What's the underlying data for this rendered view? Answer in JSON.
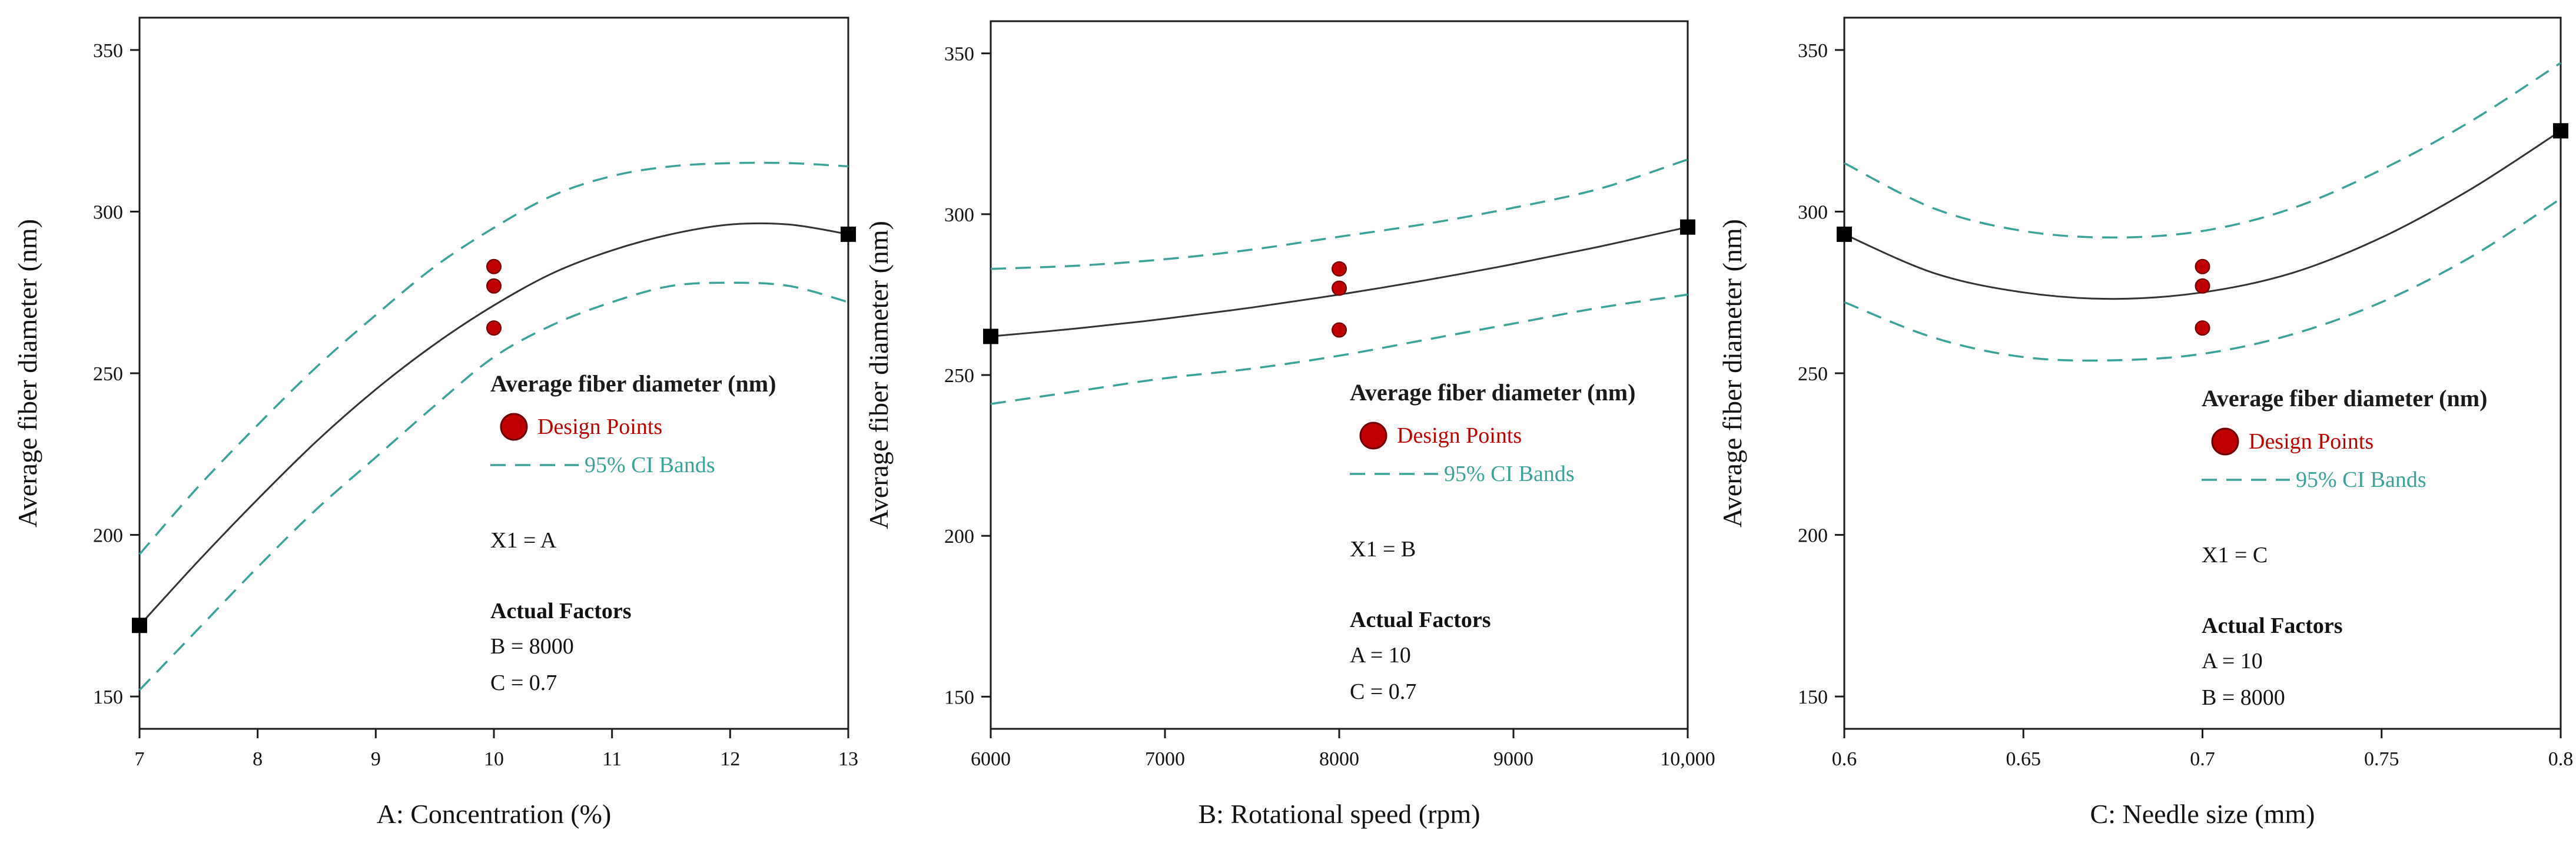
{
  "colors": {
    "fit_line": "#333333",
    "ci_band": "#3aa39a",
    "design_point": "#c00000",
    "design_point_edge": "#6b0000",
    "legend_title": "#1a1a1a",
    "axis": "#1a1a1a"
  },
  "chart_data": [
    {
      "type": "line",
      "xlabel": "A: Concentration (%)",
      "ylabel": "Average fiber diameter (nm)",
      "xlim": [
        7,
        13
      ],
      "ylim": [
        140,
        360
      ],
      "x_ticks": [
        7,
        8,
        9,
        10,
        11,
        12,
        13
      ],
      "x_tick_labels": [
        "7",
        "8",
        "9",
        "10",
        "11",
        "12",
        "13"
      ],
      "y_ticks": [
        150,
        200,
        250,
        300,
        350
      ],
      "y_tick_labels": [
        "150",
        "200",
        "250",
        "300",
        "350"
      ],
      "series": [
        {
          "name": "fit",
          "x": [
            7,
            7.5,
            8,
            8.5,
            9,
            9.5,
            10,
            10.5,
            11,
            11.5,
            12,
            12.5,
            13
          ],
          "values": [
            172,
            192,
            211,
            229,
            245,
            259,
            271,
            281,
            288,
            293,
            296,
            296,
            293
          ]
        },
        {
          "name": "ci_upper",
          "x": [
            7,
            7.5,
            8,
            8.5,
            9,
            9.5,
            10,
            10.5,
            11,
            11.5,
            12,
            12.5,
            13
          ],
          "values": [
            194,
            215,
            234,
            252,
            268,
            283,
            295,
            305,
            311,
            314,
            315,
            315,
            314
          ]
        },
        {
          "name": "ci_lower",
          "x": [
            7,
            7.5,
            8,
            8.5,
            9,
            9.5,
            10,
            10.5,
            11,
            11.5,
            12,
            12.5,
            13
          ],
          "values": [
            152,
            171,
            190,
            208,
            224,
            240,
            255,
            265,
            272,
            277,
            278,
            277,
            272
          ]
        }
      ],
      "end_points": [
        {
          "x": 7,
          "y": 172
        },
        {
          "x": 13,
          "y": 293
        }
      ],
      "design_points": [
        {
          "x": 10,
          "y": 283
        },
        {
          "x": 10,
          "y": 277
        },
        {
          "x": 10,
          "y": 264
        }
      ],
      "legend": {
        "title": "Average fiber diameter (nm)",
        "design_points_label": "Design Points",
        "ci_label": "95% CI Bands",
        "x1_label": "X1 = A",
        "factors_title": "Actual Factors",
        "factors": [
          "B = 8000",
          "C = 0.7"
        ]
      }
    },
    {
      "type": "line",
      "xlabel": "B: Rotational speed  (rpm)",
      "ylabel": "Average fiber diameter (nm)",
      "xlim": [
        6000,
        10000
      ],
      "ylim": [
        140,
        360
      ],
      "x_ticks": [
        6000,
        7000,
        8000,
        9000,
        10000
      ],
      "x_tick_labels": [
        "6000",
        "7000",
        "8000",
        "9000",
        "10,000"
      ],
      "y_ticks": [
        150,
        200,
        250,
        300,
        350
      ],
      "y_tick_labels": [
        "150",
        "200",
        "250",
        "300",
        "350"
      ],
      "series": [
        {
          "name": "fit",
          "x": [
            6000,
            6500,
            7000,
            7500,
            8000,
            8500,
            9000,
            9500,
            10000
          ],
          "values": [
            262,
            264.5,
            267.5,
            271,
            275,
            279.5,
            284.5,
            290,
            296
          ]
        },
        {
          "name": "ci_upper",
          "x": [
            6000,
            6500,
            7000,
            7500,
            8000,
            8500,
            9000,
            9500,
            10000
          ],
          "values": [
            283,
            284,
            286,
            289,
            293,
            297,
            302,
            308,
            317
          ]
        },
        {
          "name": "ci_lower",
          "x": [
            6000,
            6500,
            7000,
            7500,
            8000,
            8500,
            9000,
            9500,
            10000
          ],
          "values": [
            241,
            245,
            249,
            252,
            256,
            261,
            266,
            271,
            275
          ]
        }
      ],
      "end_points": [
        {
          "x": 6000,
          "y": 262
        },
        {
          "x": 10000,
          "y": 296
        }
      ],
      "design_points": [
        {
          "x": 8000,
          "y": 283
        },
        {
          "x": 8000,
          "y": 277
        },
        {
          "x": 8000,
          "y": 264
        }
      ],
      "legend": {
        "title": "Average fiber diameter (nm)",
        "design_points_label": "Design Points",
        "ci_label": "95% CI Bands",
        "x1_label": "X1 = B",
        "factors_title": "Actual Factors",
        "factors": [
          "A = 10",
          "C = 0.7"
        ]
      }
    },
    {
      "type": "line",
      "xlabel": "C: Needle size (mm)",
      "ylabel": "Average fiber diameter (nm)",
      "xlim": [
        0.6,
        0.8
      ],
      "ylim": [
        140,
        360
      ],
      "x_ticks": [
        0.6,
        0.65,
        0.7,
        0.75,
        0.8
      ],
      "x_tick_labels": [
        "0.6",
        "0.65",
        "0.7",
        "0.75",
        "0.8"
      ],
      "y_ticks": [
        150,
        200,
        250,
        300,
        350
      ],
      "y_tick_labels": [
        "150",
        "200",
        "250",
        "300",
        "350"
      ],
      "series": [
        {
          "name": "fit",
          "x": [
            0.6,
            0.625,
            0.65,
            0.675,
            0.7,
            0.725,
            0.75,
            0.775,
            0.8
          ],
          "values": [
            293,
            281,
            275,
            273,
            275,
            281,
            292,
            307,
            325
          ]
        },
        {
          "name": "ci_upper",
          "x": [
            0.6,
            0.625,
            0.65,
            0.675,
            0.7,
            0.725,
            0.75,
            0.775,
            0.8
          ],
          "values": [
            315,
            301,
            294,
            292,
            294,
            301,
            313,
            328,
            346
          ]
        },
        {
          "name": "ci_lower",
          "x": [
            0.6,
            0.625,
            0.65,
            0.675,
            0.7,
            0.725,
            0.75,
            0.775,
            0.8
          ],
          "values": [
            272,
            261,
            255,
            254,
            256,
            262,
            272,
            286,
            304
          ]
        }
      ],
      "end_points": [
        {
          "x": 0.6,
          "y": 293
        },
        {
          "x": 0.8,
          "y": 325
        }
      ],
      "design_points": [
        {
          "x": 0.7,
          "y": 283
        },
        {
          "x": 0.7,
          "y": 277
        },
        {
          "x": 0.7,
          "y": 264
        }
      ],
      "legend": {
        "title": "Average fiber diameter (nm)",
        "design_points_label": "Design Points",
        "ci_label": "95% CI Bands",
        "x1_label": "X1 = C",
        "factors_title": "Actual Factors",
        "factors": [
          "A = 10",
          "B = 8000"
        ]
      }
    }
  ]
}
